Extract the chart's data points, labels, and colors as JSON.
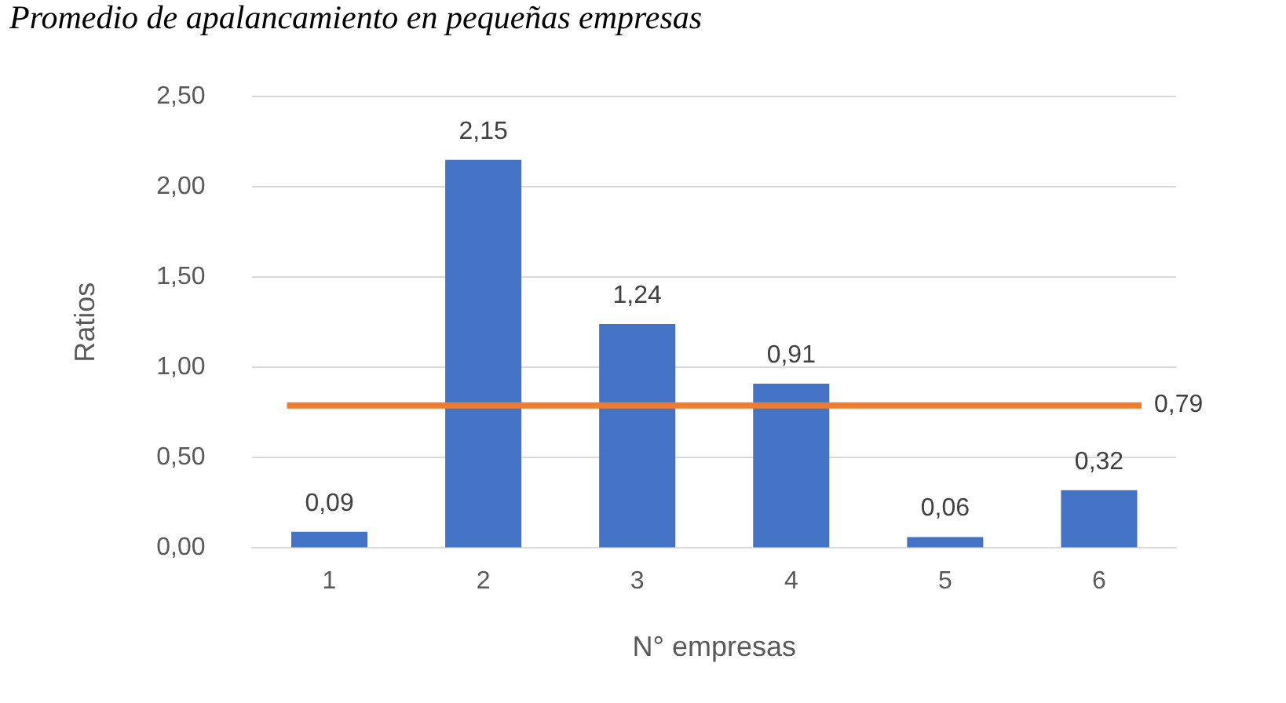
{
  "chart_data": {
    "type": "bar",
    "title": "Promedio de apalancamiento en pequeñas empresas",
    "xlabel": "N° empresas",
    "ylabel": "Ratios",
    "categories": [
      "1",
      "2",
      "3",
      "4",
      "5",
      "6"
    ],
    "series": [
      {
        "color": "#4472c4",
        "values": [
          0.09,
          2.15,
          1.24,
          0.91,
          0.06,
          0.32
        ],
        "value_labels": [
          "0,09",
          "2,15",
          "1,24",
          "0,91",
          "0,06",
          "0,32"
        ]
      }
    ],
    "ylim": [
      0,
      2.5
    ],
    "yticks": [
      {
        "value": 0,
        "label": "0,00"
      },
      {
        "value": 0.5,
        "label": "0,50"
      },
      {
        "value": 1,
        "label": "1,00"
      },
      {
        "value": 1.5,
        "label": "1,50"
      },
      {
        "value": 2,
        "label": "2,00"
      },
      {
        "value": 2.5,
        "label": "2,50"
      }
    ],
    "ref_lines": [
      {
        "axis": "y",
        "value": 0.79,
        "label": "0,79",
        "color": "#ed7d31"
      }
    ],
    "grid": "y",
    "legend": false
  }
}
